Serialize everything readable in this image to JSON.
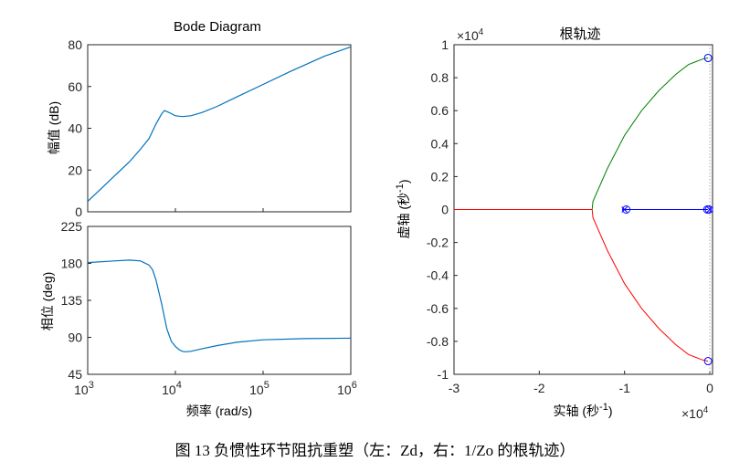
{
  "caption": "图 13 负惯性环节阻抗重塑（左：Zd，右：1/Zo 的根轨迹）",
  "colors": {
    "bode": "#0072BD",
    "rl_blue": "#0000FF",
    "rl_green": "#008000",
    "rl_red": "#FF0000",
    "axes": "#262626"
  },
  "chart_data": [
    {
      "type": "line",
      "title": "Bode Diagram",
      "xlabel": "频率 (rad/s)",
      "xscale": "log",
      "xlim": [
        1000,
        1000000
      ],
      "x_tick_labels": [
        {
          "x": 1000,
          "base": "10",
          "exp": "3"
        },
        {
          "x": 10000,
          "base": "10",
          "exp": "4"
        },
        {
          "x": 100000,
          "base": "10",
          "exp": "5"
        },
        {
          "x": 1000000,
          "base": "10",
          "exp": "6"
        }
      ],
      "magnitude": {
        "ylabel": "幅值 (dB)",
        "ylim": [
          0,
          80
        ],
        "y_ticks": [
          0,
          20,
          40,
          60,
          80
        ],
        "x": [
          1000,
          1500,
          2000,
          3000,
          4000,
          5000,
          6000,
          7000,
          7500,
          8000,
          9000,
          10000,
          12000,
          15000,
          20000,
          30000,
          50000,
          100000,
          200000,
          500000,
          1000000
        ],
        "y": [
          5,
          12,
          17,
          24,
          30,
          35,
          42,
          47,
          48.5,
          48,
          47,
          46,
          45.6,
          46,
          47.5,
          50.5,
          55,
          61,
          67,
          74.5,
          79
        ]
      },
      "phase": {
        "ylabel": "相位 (deg)",
        "ylim": [
          45,
          225
        ],
        "y_ticks": [
          45,
          90,
          135,
          180,
          225
        ],
        "x": [
          1000,
          2000,
          3000,
          4000,
          5000,
          5500,
          6000,
          7000,
          8000,
          9000,
          10000,
          11000,
          12000,
          13000,
          15000,
          20000,
          30000,
          50000,
          100000,
          300000,
          1000000
        ],
        "y": [
          181,
          183,
          184,
          183,
          178,
          172,
          160,
          130,
          100,
          85,
          79,
          75,
          73,
          72.5,
          73,
          76,
          80,
          84,
          87,
          88.5,
          89
        ]
      }
    },
    {
      "type": "line",
      "title": "根轨迹",
      "xlabel": "实轴 (秒",
      "xlabel_sup": "-1",
      "xlabel_close": ")",
      "ylabel": "虚轴 (秒",
      "ylabel_sup": "-1",
      "ylabel_close": ")",
      "xlim": [
        -3,
        0
      ],
      "ylim": [
        -1,
        1
      ],
      "x_ticks": [
        -3,
        -2,
        -1,
        0
      ],
      "y_ticks": [
        -1,
        -0.8,
        -0.6,
        -0.4,
        -0.2,
        0,
        0.2,
        0.4,
        0.6,
        0.8,
        1
      ],
      "x_multiplier": "×10",
      "x_multiplier_exp": "4",
      "y_multiplier": "×10",
      "y_multiplier_exp": "4",
      "series": [
        {
          "color": "blue",
          "x": [
            -1.03,
            -0.8,
            -0.5,
            -0.2,
            -0.02
          ],
          "y": [
            0,
            0,
            0,
            0,
            0
          ]
        },
        {
          "color": "green",
          "x": [
            -1.38,
            -1.37,
            -1.2,
            -1.0,
            -0.8,
            -0.6,
            -0.4,
            -0.25,
            -0.1,
            -0.02
          ],
          "y": [
            0,
            0.05,
            0.25,
            0.45,
            0.6,
            0.72,
            0.82,
            0.88,
            0.91,
            0.92
          ]
        },
        {
          "color": "red",
          "x": [
            -1.38,
            -1.37,
            -1.2,
            -1.0,
            -0.8,
            -0.6,
            -0.4,
            -0.25,
            -0.1,
            -0.02
          ],
          "y": [
            0,
            -0.05,
            -0.25,
            -0.45,
            -0.6,
            -0.72,
            -0.82,
            -0.88,
            -0.91,
            -0.92
          ]
        },
        {
          "color": "red",
          "x": [
            -3,
            -2.5,
            -2,
            -1.5,
            -1.38
          ],
          "y": [
            0,
            0,
            0,
            0,
            0
          ]
        }
      ],
      "zeros": [
        [
          -0.98,
          0
        ],
        [
          -0.02,
          0.92
        ],
        [
          -0.02,
          -0.92
        ],
        [
          -0.03,
          0
        ],
        [
          -0.01,
          0
        ]
      ],
      "poles": [
        [
          -1.0,
          0
        ],
        [
          0.0,
          0
        ]
      ]
    }
  ]
}
